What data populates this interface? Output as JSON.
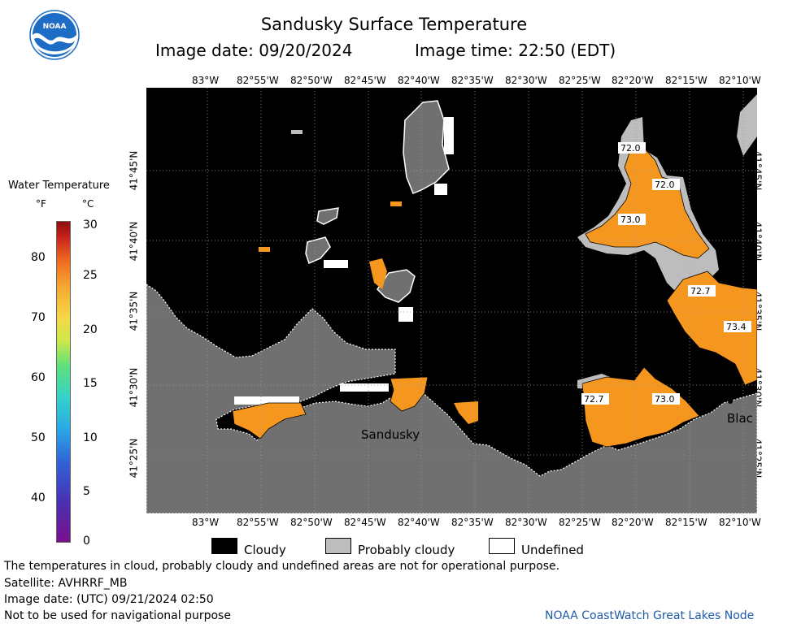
{
  "header": {
    "title": "Sandusky Surface Temperature",
    "image_date": "Image date: 09/20/2024",
    "image_time": "Image time: 22:50 (EDT)"
  },
  "logo": {
    "text": "NOAA",
    "icon": "noaa-logo-icon"
  },
  "axes": {
    "longitudes": [
      "83°W",
      "82°55'W",
      "82°50'W",
      "82°45'W",
      "82°40'W",
      "82°35'W",
      "82°30'W",
      "82°25'W",
      "82°20'W",
      "82°15'W",
      "82°10'W"
    ],
    "latitudes": [
      "41°45'N",
      "41°40'N",
      "41°35'N",
      "41°30'N",
      "41°25'N"
    ]
  },
  "map": {
    "place_labels": [
      "Sandusky",
      "Blac"
    ],
    "temperature_labels": [
      "72.0",
      "72.0",
      "73.0",
      "72.7",
      "73.4",
      "72.7",
      "73.0"
    ],
    "colors": {
      "cloudy": "#000000",
      "probably_cloudy": "#bdbdbd",
      "undefined": "#ffffff",
      "land": "#707070",
      "water_temp": "#f5961e"
    }
  },
  "colorbar": {
    "title": "Water Temperature",
    "unit_f": "°F",
    "unit_c": "°C",
    "f_labels": [
      "80",
      "70",
      "60",
      "50",
      "40"
    ],
    "c_labels": [
      "30",
      "25",
      "20",
      "15",
      "10",
      "5",
      "0"
    ]
  },
  "legend": {
    "items": [
      {
        "label": "Cloudy",
        "color": "#000000"
      },
      {
        "label": "Probably cloudy",
        "color": "#bdbdbd"
      },
      {
        "label": "Undefined",
        "color": "#ffffff"
      }
    ]
  },
  "notes": {
    "line1": "The temperatures in cloud, probably cloudy and undefined areas are not for operational purpose.",
    "line2": "Satellite: AVHRRF_MB",
    "line3": "Image date: (UTC) 09/21/2024  02:50",
    "line4": "Not to be used for navigational purpose",
    "credit": "NOAA CoastWatch Great Lakes Node"
  }
}
